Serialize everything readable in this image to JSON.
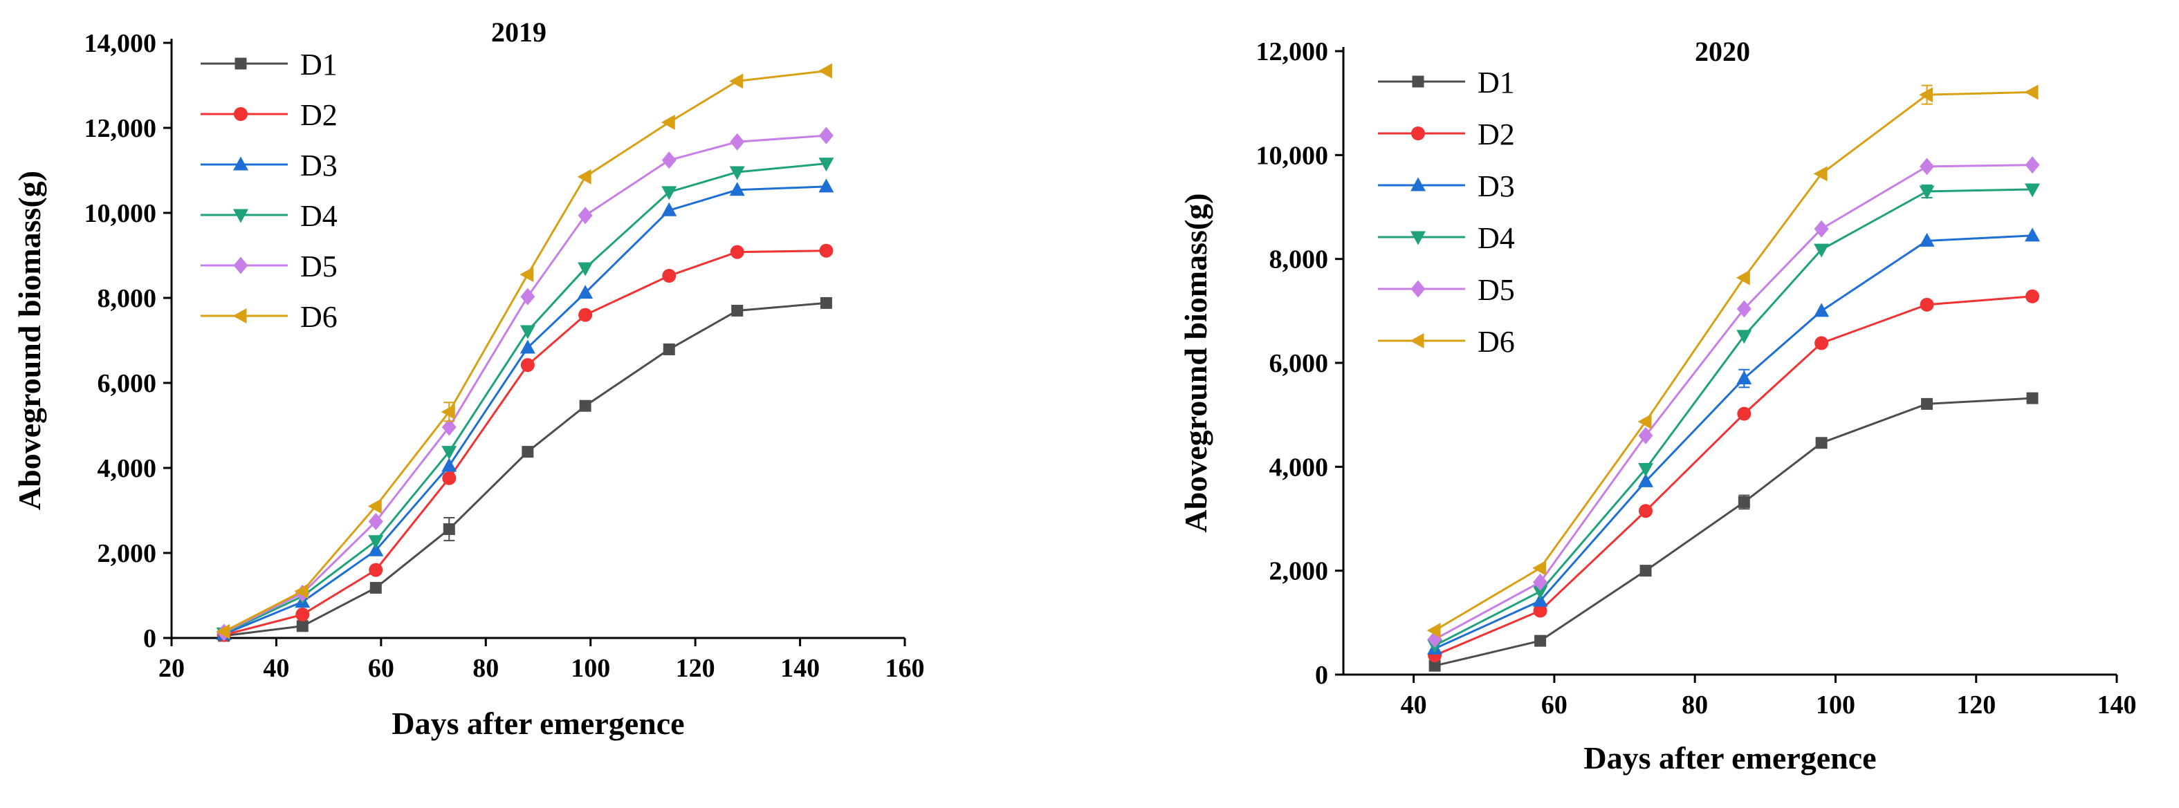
{
  "chart_data": [
    {
      "type": "line",
      "title": "2019",
      "xlabel": "Days after emergence",
      "ylabel": "Aboveground biomass(g)",
      "xlim": [
        20,
        160
      ],
      "ylim": [
        0,
        14000
      ],
      "x_ticks": [
        20,
        40,
        60,
        80,
        100,
        120,
        140,
        160
      ],
      "y_ticks": [
        0,
        2000,
        4000,
        6000,
        8000,
        10000,
        12000,
        14000
      ],
      "x_tick_labels": [
        "20",
        "40",
        "60",
        "80",
        "100",
        "120",
        "140",
        "160"
      ],
      "y_tick_labels": [
        "0",
        "2,000",
        "4,000",
        "6,000",
        "8,000",
        "10,000",
        "12,000",
        "14,000"
      ],
      "legend_position": "top-left",
      "x": [
        30,
        45,
        59,
        73,
        88,
        99,
        115,
        128,
        145
      ],
      "series": [
        {
          "name": "D1",
          "marker": "square",
          "color": "#4d4d4d",
          "values": [
            50,
            280,
            1180,
            2560,
            4380,
            5460,
            6790,
            7700,
            7880
          ],
          "errors": [
            0,
            0,
            0,
            270,
            0,
            0,
            120,
            0,
            0
          ]
        },
        {
          "name": "D2",
          "marker": "circle",
          "color": "#f03232",
          "values": [
            70,
            550,
            1600,
            3760,
            6420,
            7600,
            8520,
            9080,
            9110
          ],
          "errors": [
            0,
            0,
            0,
            0,
            0,
            0,
            0,
            0,
            0
          ]
        },
        {
          "name": "D3",
          "marker": "triangle-up",
          "color": "#1d6fd6",
          "values": [
            90,
            850,
            2060,
            4050,
            6830,
            8120,
            10060,
            10540,
            10620
          ],
          "errors": [
            0,
            0,
            0,
            0,
            0,
            0,
            0,
            0,
            0
          ]
        },
        {
          "name": "D4",
          "marker": "triangle-down",
          "color": "#1ea27a",
          "values": [
            110,
            980,
            2280,
            4380,
            7220,
            8700,
            10490,
            10960,
            11160
          ],
          "errors": [
            0,
            0,
            0,
            0,
            0,
            0,
            0,
            0,
            0
          ]
        },
        {
          "name": "D5",
          "marker": "diamond",
          "color": "#c77ee6",
          "values": [
            130,
            1050,
            2740,
            4960,
            8030,
            9940,
            11240,
            11670,
            11820
          ],
          "errors": [
            0,
            0,
            0,
            0,
            0,
            0,
            0,
            0,
            0
          ]
        },
        {
          "name": "D6",
          "marker": "triangle-left",
          "color": "#d9a014",
          "values": [
            150,
            1100,
            3100,
            5320,
            8550,
            10850,
            12130,
            13100,
            13340
          ],
          "errors": [
            0,
            0,
            0,
            220,
            0,
            0,
            0,
            0,
            0
          ]
        }
      ]
    },
    {
      "type": "line",
      "title": "2020",
      "xlabel": "Days after emergence",
      "ylabel": "Aboveground biomass(g)",
      "xlim": [
        30,
        140
      ],
      "ylim": [
        0,
        12000
      ],
      "x_ticks": [
        40,
        60,
        80,
        100,
        120,
        140
      ],
      "y_ticks": [
        0,
        2000,
        4000,
        6000,
        8000,
        10000,
        12000
      ],
      "x_tick_labels": [
        "40",
        "60",
        "80",
        "100",
        "120",
        "140"
      ],
      "y_tick_labels": [
        "0",
        "2,000",
        "4,000",
        "6,000",
        "8,000",
        "10,000",
        "12,000"
      ],
      "legend_position": "top-left",
      "x": [
        43,
        58,
        73,
        87,
        98,
        113,
        128
      ],
      "series": [
        {
          "name": "D1",
          "marker": "square",
          "color": "#4d4d4d",
          "values": [
            170,
            650,
            2000,
            3320,
            4460,
            5210,
            5320
          ],
          "errors": [
            0,
            0,
            0,
            130,
            0,
            0,
            0
          ]
        },
        {
          "name": "D2",
          "marker": "circle",
          "color": "#f03232",
          "values": [
            370,
            1230,
            3150,
            5020,
            6380,
            7120,
            7280
          ],
          "errors": [
            0,
            0,
            0,
            0,
            0,
            0,
            0
          ]
        },
        {
          "name": "D3",
          "marker": "triangle-up",
          "color": "#1d6fd6",
          "values": [
            500,
            1420,
            3720,
            5700,
            7000,
            8350,
            8450
          ],
          "errors": [
            0,
            0,
            0,
            170,
            0,
            0,
            0
          ]
        },
        {
          "name": "D4",
          "marker": "triangle-down",
          "color": "#1ea27a",
          "values": [
            560,
            1600,
            3960,
            6520,
            8180,
            9300,
            9340
          ],
          "errors": [
            0,
            0,
            0,
            0,
            0,
            120,
            0
          ]
        },
        {
          "name": "D5",
          "marker": "diamond",
          "color": "#c77ee6",
          "values": [
            680,
            1780,
            4600,
            7040,
            8580,
            9780,
            9810
          ],
          "errors": [
            0,
            0,
            0,
            0,
            0,
            0,
            0
          ]
        },
        {
          "name": "D6",
          "marker": "triangle-left",
          "color": "#d9a014",
          "values": [
            850,
            2050,
            4870,
            7640,
            9640,
            11160,
            11210
          ],
          "errors": [
            0,
            0,
            0,
            0,
            0,
            180,
            0
          ]
        }
      ]
    }
  ]
}
